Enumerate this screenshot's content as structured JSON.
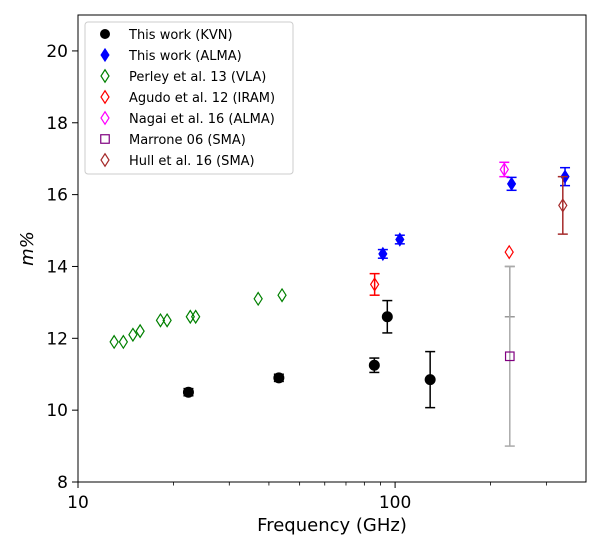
{
  "chart_data": {
    "type": "scatter",
    "xscale": "log",
    "xlabel": "Frequency (GHz)",
    "ylabel": "m%",
    "xlim": [
      10,
      400
    ],
    "ylim": [
      8,
      21
    ],
    "x_ticks": [
      10,
      100
    ],
    "x_tick_labels": [
      "10",
      "100"
    ],
    "y_ticks": [
      8,
      10,
      12,
      14,
      16,
      18,
      20
    ],
    "y_tick_labels": [
      "8",
      "10",
      "12",
      "14",
      "16",
      "18",
      "20"
    ],
    "grid": false,
    "legend_position": "top-left",
    "series": [
      {
        "name": "This work (KVN)",
        "marker": "circle-filled",
        "color": "#000000",
        "points": [
          {
            "x": 22.3,
            "y": 10.5,
            "err": 0.1
          },
          {
            "x": 43.0,
            "y": 10.9,
            "err": 0.1
          },
          {
            "x": 86.0,
            "y": 11.25,
            "err": 0.2
          },
          {
            "x": 94.5,
            "y": 12.6,
            "err": 0.45
          },
          {
            "x": 129.0,
            "y": 10.85,
            "err": 0.78
          }
        ]
      },
      {
        "name": "This work (ALMA)",
        "marker": "diamond-filled",
        "color": "#0000ff",
        "points": [
          {
            "x": 91.5,
            "y": 14.35,
            "err": 0.12
          },
          {
            "x": 103.5,
            "y": 14.75,
            "err": 0.12
          },
          {
            "x": 233.0,
            "y": 16.3,
            "err": 0.18
          },
          {
            "x": 343.5,
            "y": 16.5,
            "err": 0.25
          }
        ]
      },
      {
        "name": "Perley et al. 13 (VLA)",
        "marker": "diamond-open",
        "color": "#008000",
        "points": [
          {
            "x": 13.0,
            "y": 11.9
          },
          {
            "x": 13.9,
            "y": 11.9
          },
          {
            "x": 14.9,
            "y": 12.1
          },
          {
            "x": 15.7,
            "y": 12.2
          },
          {
            "x": 18.2,
            "y": 12.5
          },
          {
            "x": 19.1,
            "y": 12.5
          },
          {
            "x": 22.6,
            "y": 12.6
          },
          {
            "x": 23.5,
            "y": 12.6
          },
          {
            "x": 37.0,
            "y": 13.1
          },
          {
            "x": 44.0,
            "y": 13.2
          }
        ]
      },
      {
        "name": "Agudo et al. 12 (IRAM)",
        "marker": "diamond-open",
        "color": "#ff0000",
        "points": [
          {
            "x": 86.2,
            "y": 13.5,
            "err": 0.3
          },
          {
            "x": 229.0,
            "y": 14.4,
            "err": 0.0
          }
        ]
      },
      {
        "name": "Nagai et al. 16 (ALMA)",
        "marker": "diamond-open",
        "color": "#ff00ff",
        "points": [
          {
            "x": 221.0,
            "y": 16.7,
            "err": 0.2
          }
        ]
      },
      {
        "name": "Marrone 06 (SMA)",
        "marker": "square-open",
        "color": "#800080",
        "points": [
          {
            "x": 230.0,
            "y": 11.5,
            "err": 2.5
          }
        ]
      },
      {
        "name": "Hull et al. 16 (SMA)",
        "marker": "diamond-open",
        "color": "#a52a2a",
        "points": [
          {
            "x": 338.0,
            "y": 15.7,
            "err": 0.8
          }
        ]
      }
    ],
    "extra_errorbars": [
      {
        "x": 230.0,
        "y": 13.3,
        "err": 0.7,
        "color": "#999999"
      }
    ]
  }
}
